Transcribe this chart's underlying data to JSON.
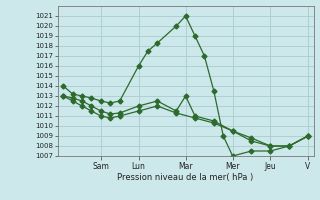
{
  "bg_color": "#cce8ea",
  "grid_color": "#aaccce",
  "line_color": "#2d6a2d",
  "xlabel": "Pression niveau de la mer( hPa )",
  "ylim": [
    1007,
    1022
  ],
  "xlim": [
    -0.3,
    13.3
  ],
  "yticks": [
    1007,
    1008,
    1009,
    1010,
    1011,
    1012,
    1013,
    1014,
    1015,
    1016,
    1017,
    1018,
    1019,
    1020,
    1021
  ],
  "day_labels": [
    "Sam",
    "Lun",
    "Mar",
    "Mer",
    "Jeu",
    "V"
  ],
  "day_positions": [
    2.0,
    4.0,
    6.5,
    9.0,
    11.0,
    13.0
  ],
  "series": [
    {
      "x": [
        0.0,
        0.5,
        1.0,
        1.5,
        2.0,
        2.5,
        3.0,
        4.0,
        4.5,
        5.0,
        6.0,
        6.5,
        7.0,
        7.5,
        8.0,
        8.5,
        9.0,
        10.0,
        11.0,
        12.0,
        13.0
      ],
      "y": [
        1014.0,
        1013.2,
        1013.0,
        1012.8,
        1012.5,
        1012.3,
        1012.5,
        1016.0,
        1017.5,
        1018.3,
        1020.0,
        1021.0,
        1019.0,
        1017.0,
        1013.5,
        1009.0,
        1007.0,
        1007.5,
        1007.5,
        1008.0,
        1009.0
      ],
      "marker": "D",
      "ms": 2.5
    },
    {
      "x": [
        0.0,
        0.5,
        1.0,
        1.5,
        2.0,
        2.5,
        3.0,
        4.0,
        5.0,
        6.0,
        6.5,
        7.0,
        8.0,
        9.0,
        10.0,
        11.0,
        12.0,
        13.0
      ],
      "y": [
        1013.0,
        1012.8,
        1012.5,
        1012.0,
        1011.5,
        1011.2,
        1011.3,
        1012.0,
        1012.5,
        1011.5,
        1013.0,
        1011.0,
        1010.5,
        1009.5,
        1008.8,
        1008.0,
        1008.0,
        1009.0
      ],
      "marker": "D",
      "ms": 2.5
    },
    {
      "x": [
        0.0,
        0.5,
        1.0,
        1.5,
        2.0,
        2.5,
        3.0,
        4.0,
        5.0,
        6.0,
        7.0,
        8.0,
        9.0,
        10.0,
        11.0,
        12.0,
        13.0
      ],
      "y": [
        1013.0,
        1012.5,
        1012.0,
        1011.5,
        1011.0,
        1010.8,
        1011.0,
        1011.5,
        1012.0,
        1011.3,
        1010.8,
        1010.3,
        1009.5,
        1008.5,
        1008.0,
        1008.0,
        1009.0
      ],
      "marker": "D",
      "ms": 2.5
    }
  ],
  "figsize": [
    3.2,
    2.0
  ],
  "dpi": 100
}
